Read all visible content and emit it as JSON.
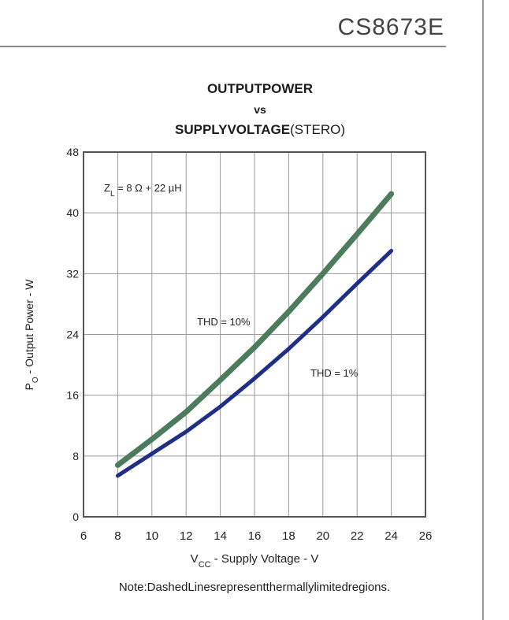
{
  "header": {
    "part_number": "CS8673E"
  },
  "chart_title": {
    "line1": "OUTPUTPOWER",
    "line2": "vs",
    "line3_bold": "SUPPLYVOLTAGE",
    "line3_normal": "(STERO)"
  },
  "note": "Note:DashedLinesrepresentthermallylimitedregions.",
  "chart_data": {
    "type": "line",
    "title": "OUTPUTPOWER vs SUPPLYVOLTAGE(STERO)",
    "xlabel": "VCC - Supply Voltage - V",
    "ylabel": "PO - Output Power - W",
    "xlim": [
      6,
      26
    ],
    "ylim": [
      0,
      48
    ],
    "x_ticks": [
      6,
      8,
      10,
      12,
      14,
      16,
      18,
      20,
      22,
      24,
      26
    ],
    "y_ticks": [
      0,
      8,
      16,
      24,
      32,
      40,
      48
    ],
    "grid": true,
    "annotation": "ZL = 8 Ω + 22 µH",
    "series": [
      {
        "name": "THD = 10%",
        "color": "#4d7b5e",
        "x": [
          8,
          10,
          12,
          14,
          16,
          18,
          20,
          22,
          24
        ],
        "y": [
          6.8,
          10.2,
          13.8,
          18.0,
          22.3,
          27.0,
          32.0,
          37.2,
          42.5
        ]
      },
      {
        "name": "THD = 1%",
        "color": "#1f2f86",
        "x": [
          8,
          10,
          12,
          14,
          16,
          18,
          20,
          22,
          24
        ],
        "y": [
          5.4,
          8.3,
          11.2,
          14.5,
          18.2,
          22.1,
          26.3,
          30.7,
          35.0
        ]
      }
    ]
  }
}
